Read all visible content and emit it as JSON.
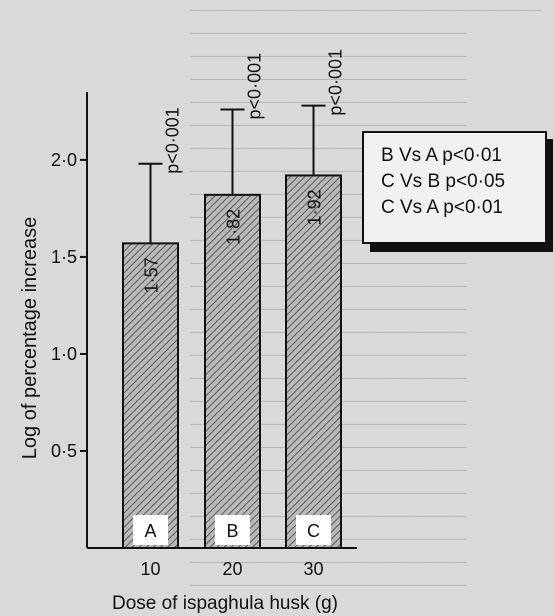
{
  "chart_data": {
    "type": "bar",
    "categories": [
      "10",
      "20",
      "30"
    ],
    "values": [
      1.57,
      1.82,
      1.92
    ],
    "data_labels": [
      "1·57",
      "1·82",
      "1·92"
    ],
    "bar_letters": [
      "A",
      "B",
      "C"
    ],
    "p_labels": [
      "p<0·001",
      "p<0·001",
      "p<0·001"
    ],
    "error_upper": [
      1.98,
      2.26,
      2.28
    ],
    "xlabel": "Dose of ispaghula husk (g)",
    "ylabel": "Log of percentage increase",
    "ylim": [
      0,
      2.35
    ],
    "yticks": [
      0.5,
      1.0,
      1.5,
      2.0
    ],
    "ytick_labels": [
      "0·5",
      "1·0",
      "1·5",
      "2·0"
    ],
    "legend_entries": [
      "B Vs A p<0·01",
      "C Vs B p<0·05",
      "C Vs A p<0·01"
    ],
    "legend_placement": "right",
    "grid": false,
    "bar_fill": "hatched"
  },
  "colors": {
    "background": "#d9d9d9",
    "ink": "#111111",
    "legend_bg": "#f1f1f1"
  }
}
